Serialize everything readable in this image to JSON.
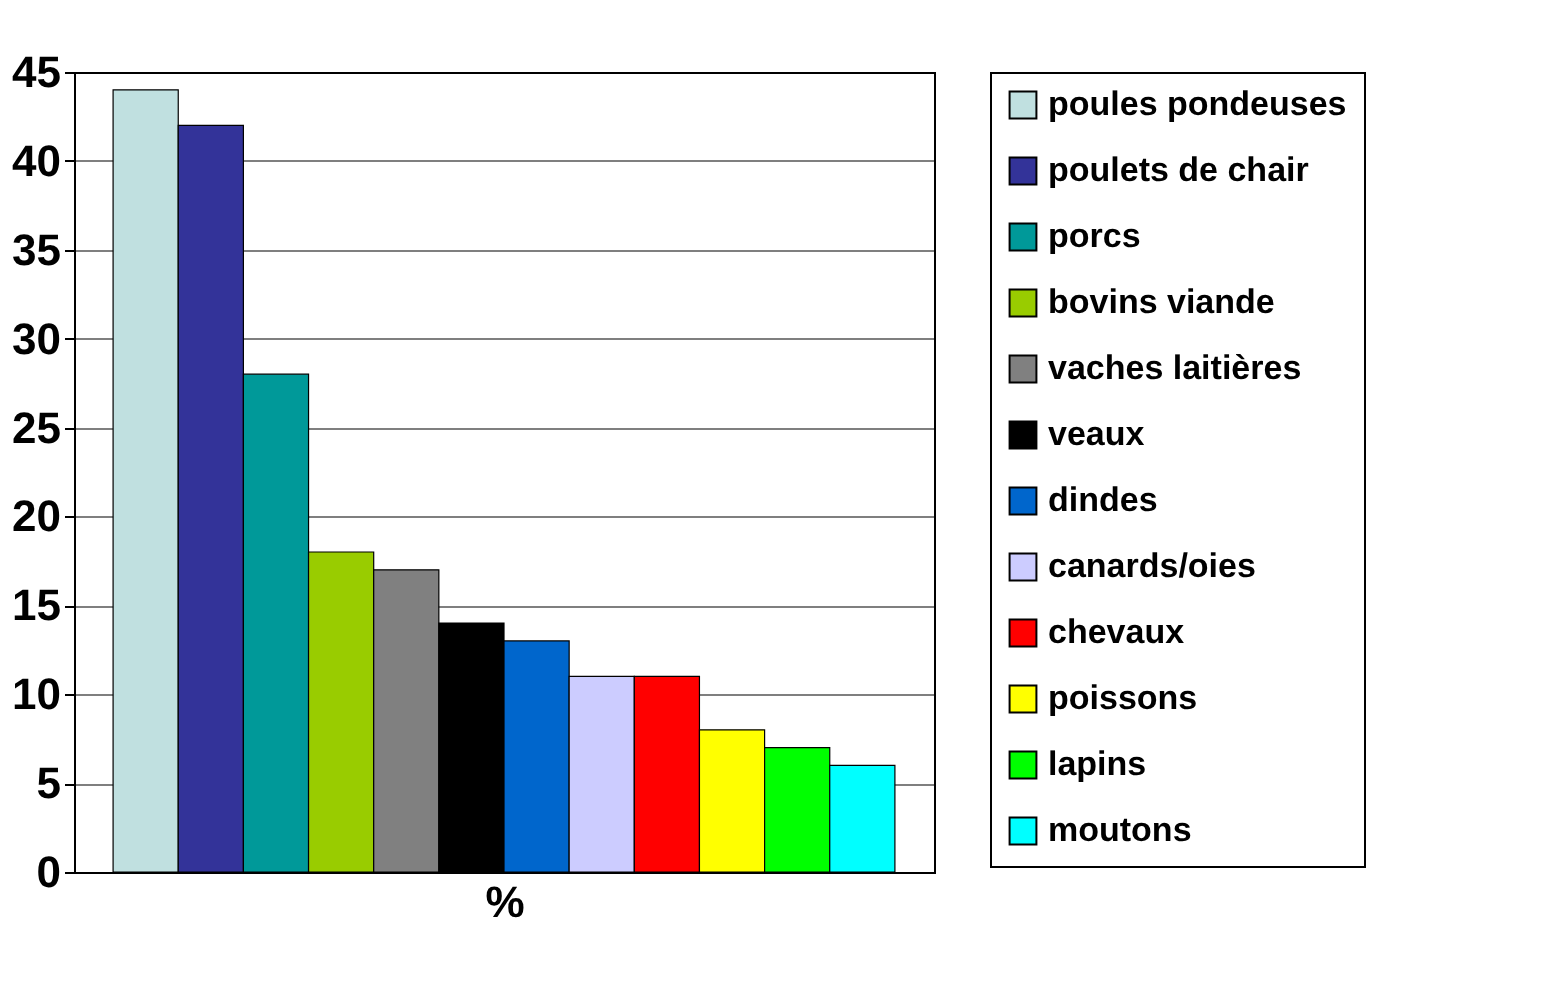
{
  "chart_data": {
    "type": "bar",
    "xlabel": "%",
    "categories": [
      null,
      null,
      null,
      null,
      null,
      null,
      null,
      null,
      null,
      null,
      null,
      null
    ],
    "series": [
      {
        "name": "poules pondeuses",
        "color": "#c0e0e0",
        "values": [
          44,
          null,
          null,
          null,
          null,
          null,
          null,
          null,
          null,
          null,
          null,
          null
        ]
      },
      {
        "name": "poulets de chair",
        "color": "#333399",
        "values": [
          null,
          42,
          null,
          null,
          null,
          null,
          null,
          null,
          null,
          null,
          null,
          null
        ]
      },
      {
        "name": "porcs",
        "color": "#009999",
        "values": [
          null,
          null,
          28,
          null,
          null,
          null,
          null,
          null,
          null,
          null,
          null,
          null
        ]
      },
      {
        "name": "bovins viande",
        "color": "#99cc00",
        "values": [
          null,
          null,
          null,
          18,
          null,
          null,
          null,
          null,
          null,
          null,
          null,
          null
        ]
      },
      {
        "name": "vaches laitières",
        "color": "#808080",
        "values": [
          null,
          null,
          null,
          null,
          17,
          null,
          null,
          null,
          null,
          null,
          null,
          null
        ]
      },
      {
        "name": "veaux",
        "color": "#000000",
        "values": [
          null,
          null,
          null,
          null,
          null,
          14,
          null,
          null,
          null,
          null,
          null,
          null
        ]
      },
      {
        "name": "dindes",
        "color": "#0066cc",
        "values": [
          null,
          null,
          null,
          null,
          null,
          null,
          13,
          null,
          null,
          null,
          null,
          null
        ]
      },
      {
        "name": "canards/oies",
        "color": "#ccccff",
        "values": [
          null,
          null,
          null,
          null,
          null,
          null,
          null,
          11,
          null,
          null,
          null,
          null
        ]
      },
      {
        "name": "chevaux",
        "color": "#ff0000",
        "values": [
          null,
          null,
          null,
          null,
          null,
          null,
          null,
          null,
          11,
          null,
          null,
          null
        ]
      },
      {
        "name": "poissons",
        "color": "#ffff00",
        "values": [
          null,
          null,
          null,
          null,
          null,
          null,
          null,
          null,
          null,
          8,
          null,
          null
        ]
      },
      {
        "name": "lapins",
        "color": "#00ff00",
        "values": [
          null,
          null,
          null,
          null,
          null,
          null,
          null,
          null,
          null,
          null,
          7,
          null
        ]
      },
      {
        "name": "moutons",
        "color": "#00ffff",
        "values": [
          null,
          null,
          null,
          null,
          null,
          null,
          null,
          null,
          null,
          null,
          null,
          6
        ]
      }
    ],
    "ylim": [
      0,
      45
    ],
    "yticks": [
      0,
      5,
      10,
      15,
      20,
      25,
      30,
      35,
      40,
      45
    ],
    "grid": "y",
    "legend": "right"
  }
}
